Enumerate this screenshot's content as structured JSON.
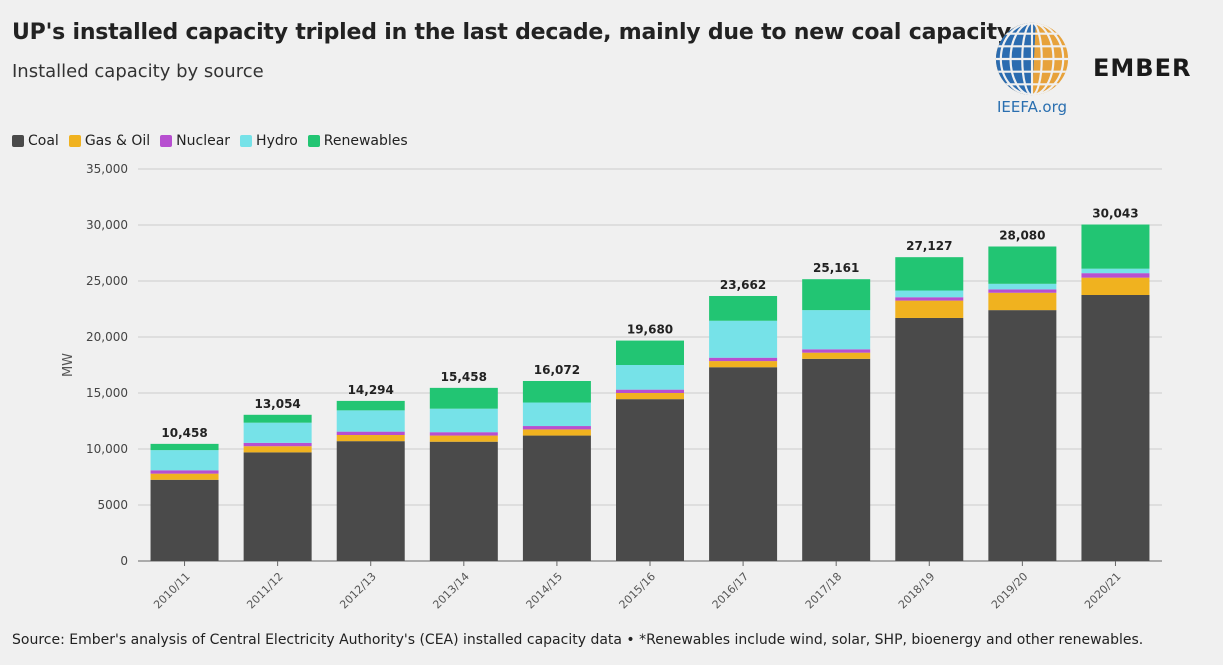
{
  "header": {
    "title": "UP's installed capacity tripled in the last decade, mainly due to new coal capacity",
    "subtitle": "Installed capacity by source"
  },
  "logos": {
    "ieefa": "IEEFA.org",
    "ember": "EMBER"
  },
  "footer": {
    "source": "Source: Ember's analysis of Central Electricity Authority's (CEA) installed capacity data • *Renewables include wind, solar, SHP, bioenergy and other renewables."
  },
  "colors": {
    "Coal": "#4a4a4a",
    "Gas & Oil": "#f0b21f",
    "Nuclear": "#b74fd0",
    "Hydro": "#76e2e8",
    "Renewables": "#22c573",
    "grid": "#cccccc",
    "axis": "#666666"
  },
  "chart_data": {
    "type": "bar",
    "stacked": true,
    "title": "UP's installed capacity tripled in the last decade, mainly due to new coal capacity",
    "subtitle": "Installed capacity by source",
    "xlabel": "",
    "ylabel": "MW",
    "ylim": [
      0,
      35000
    ],
    "yticks": [
      0,
      5000,
      10000,
      15000,
      20000,
      25000,
      30000,
      35000
    ],
    "ytick_labels": [
      "0",
      "5000",
      "10,000",
      "15,000",
      "20,000",
      "25,000",
      "30,000",
      "35,000"
    ],
    "grid": true,
    "legend_position": "top-left",
    "categories": [
      "2010/11",
      "2011/12",
      "2012/13",
      "2013/14",
      "2014/15",
      "2015/16",
      "2016/17",
      "2017/18",
      "2018/19",
      "2019/20",
      "2020/21"
    ],
    "series": [
      {
        "name": "Coal",
        "values": [
          7250,
          9700,
          10700,
          10650,
          11200,
          14450,
          17300,
          18050,
          21700,
          22400,
          23750
        ]
      },
      {
        "name": "Gas & Oil",
        "values": [
          550,
          550,
          550,
          550,
          550,
          550,
          550,
          550,
          1550,
          1550,
          1550
        ]
      },
      {
        "name": "Nuclear",
        "values": [
          300,
          300,
          300,
          300,
          300,
          300,
          300,
          300,
          300,
          300,
          400
        ]
      },
      {
        "name": "Hydro",
        "values": [
          1800,
          1800,
          1900,
          2100,
          2100,
          2200,
          3300,
          3500,
          600,
          500,
          400
        ]
      },
      {
        "name": "Renewables",
        "values": [
          558,
          704,
          844,
          1858,
          1922,
          2180,
          2212,
          2761,
          2977,
          3330,
          3943
        ]
      }
    ],
    "totals": [
      10458,
      13054,
      14294,
      15458,
      16072,
      19680,
      23662,
      25161,
      27127,
      28080,
      30043
    ],
    "total_labels": [
      "10,458",
      "13,054",
      "14,294",
      "15,458",
      "16,072",
      "19,680",
      "23,662",
      "25,161",
      "27,127",
      "28,080",
      "30,043"
    ]
  }
}
